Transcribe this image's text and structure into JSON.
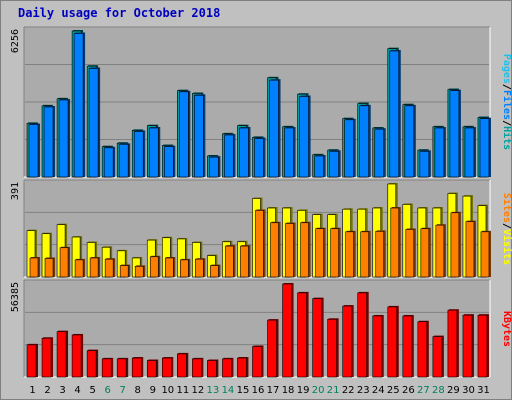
{
  "chart_title": "Daily usage for October 2018",
  "colors": {
    "background": "#c0c0c0",
    "panel": "#ababab",
    "hits": "#00a0a0",
    "files": "#0080ff",
    "pages": "#20c0e8",
    "visits": "#ffff00",
    "sites": "#ff8000",
    "kbytes": "#ff0000",
    "weekend_day": "#00805c",
    "title": "#0000c0"
  },
  "chart_data": [
    {
      "type": "bar",
      "panel": "hits_files_pages",
      "max_label": "6256",
      "ylim": [
        0,
        6256
      ],
      "categories": [
        "1",
        "2",
        "3",
        "4",
        "5",
        "6",
        "7",
        "8",
        "9",
        "10",
        "11",
        "12",
        "13",
        "14",
        "15",
        "16",
        "17",
        "18",
        "19",
        "20",
        "21",
        "22",
        "23",
        "24",
        "25",
        "26",
        "27",
        "28",
        "29",
        "30",
        "31"
      ],
      "legend": [
        "Pages",
        "/",
        "Files",
        "/",
        "Hits"
      ],
      "series": [
        {
          "name": "Hits",
          "values": [
            2300,
            3050,
            3350,
            6256,
            4750,
            1300,
            1450,
            2000,
            2200,
            1350,
            3700,
            3580,
            900,
            1850,
            2200,
            1700,
            4250,
            2150,
            3550,
            950,
            1150,
            2500,
            3150,
            2100,
            5500,
            3100,
            1150,
            2150,
            3750,
            2150,
            2550
          ]
        },
        {
          "name": "Files",
          "values": [
            2250,
            3000,
            3300,
            6150,
            4650,
            1250,
            1400,
            1950,
            2100,
            1300,
            3650,
            3500,
            850,
            1800,
            2100,
            1650,
            4150,
            2100,
            3450,
            900,
            1100,
            2450,
            3050,
            2050,
            5400,
            3050,
            1100,
            2100,
            3700,
            2100,
            2500
          ]
        }
      ]
    },
    {
      "type": "bar",
      "panel": "visits_sites",
      "max_label": "391",
      "ylim": [
        0,
        391
      ],
      "categories": [
        "1",
        "2",
        "3",
        "4",
        "5",
        "6",
        "7",
        "8",
        "9",
        "10",
        "11",
        "12",
        "13",
        "14",
        "15",
        "16",
        "17",
        "18",
        "19",
        "20",
        "21",
        "22",
        "23",
        "24",
        "25",
        "26",
        "27",
        "28",
        "29",
        "30",
        "31"
      ],
      "legend": [
        "Sites",
        "/",
        "Visits"
      ],
      "series": [
        {
          "name": "Visits",
          "values": [
            195,
            182,
            220,
            168,
            145,
            125,
            110,
            80,
            155,
            165,
            160,
            145,
            90,
            148,
            148,
            330,
            290,
            290,
            280,
            262,
            262,
            285,
            285,
            290,
            391,
            305,
            290,
            290,
            351,
            340,
            300
          ]
        },
        {
          "name": "Sites",
          "values": [
            80,
            78,
            123,
            72,
            80,
            75,
            48,
            45,
            85,
            80,
            72,
            75,
            48,
            130,
            130,
            280,
            228,
            225,
            228,
            203,
            203,
            190,
            190,
            192,
            290,
            200,
            203,
            218,
            270,
            233,
            190
          ]
        }
      ]
    },
    {
      "type": "bar",
      "panel": "kbytes",
      "max_label": "56385",
      "ylim": [
        0,
        56385
      ],
      "categories": [
        "1",
        "2",
        "3",
        "4",
        "5",
        "6",
        "7",
        "8",
        "9",
        "10",
        "11",
        "12",
        "13",
        "14",
        "15",
        "16",
        "17",
        "18",
        "19",
        "20",
        "21",
        "22",
        "23",
        "24",
        "25",
        "26",
        "27",
        "28",
        "29",
        "30",
        "31"
      ],
      "legend": [
        "KBytes"
      ],
      "series": [
        {
          "name": "KBytes",
          "values": [
            19500,
            23500,
            27500,
            25500,
            16000,
            11000,
            11000,
            11500,
            10000,
            11500,
            14000,
            11000,
            10000,
            11000,
            11500,
            18500,
            34500,
            56385,
            51000,
            47500,
            35000,
            43000,
            51000,
            37000,
            42500,
            37000,
            33500,
            24500,
            40500,
            37500,
            37500
          ]
        }
      ]
    }
  ],
  "day_labels": [
    "1",
    "2",
    "3",
    "4",
    "5",
    "6",
    "7",
    "8",
    "9",
    "10",
    "11",
    "12",
    "13",
    "14",
    "15",
    "16",
    "17",
    "18",
    "19",
    "20",
    "21",
    "22",
    "23",
    "24",
    "25",
    "26",
    "27",
    "28",
    "29",
    "30",
    "31"
  ],
  "weekend_days": [
    6,
    7,
    13,
    14,
    20,
    21,
    27,
    28
  ]
}
